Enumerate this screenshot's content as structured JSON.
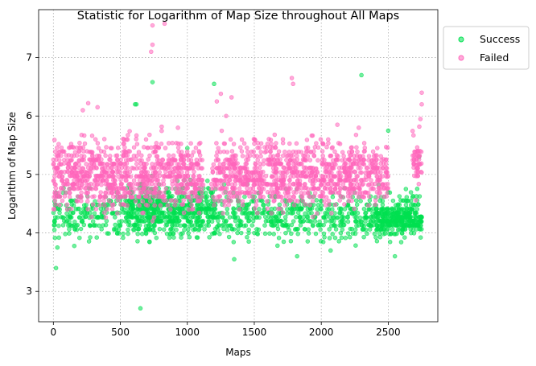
{
  "chart_data": {
    "type": "scatter",
    "title": "Statistic for Logarithm of Map Size throughout All Maps",
    "xlabel": "Maps",
    "ylabel": "Logarithm of Map Size",
    "xlim": [
      -110,
      2870
    ],
    "ylim": [
      2.48,
      7.82
    ],
    "xticks": [
      0,
      500,
      1000,
      1500,
      2000,
      2500
    ],
    "yticks": [
      3,
      4,
      5,
      6,
      7
    ],
    "grid": true,
    "legend_position": "upper right, outside plot area",
    "series": [
      {
        "name": "Success",
        "color": "#00e050",
        "clusters": [
          {
            "x": [
              0,
              2750
            ],
            "y": [
              3.7,
              4.9
            ],
            "count": 1100
          },
          {
            "x": [
              550,
              1200
            ],
            "y": [
              3.9,
              5.0
            ],
            "count": 350
          },
          {
            "x": [
              2400,
              2750
            ],
            "y": [
              3.9,
              4.5
            ],
            "count": 200
          }
        ],
        "points": [
          {
            "x": 20,
            "y": 3.4
          },
          {
            "x": 30,
            "y": 3.75
          },
          {
            "x": 650,
            "y": 2.71
          },
          {
            "x": 740,
            "y": 6.58
          },
          {
            "x": 1200,
            "y": 6.55
          },
          {
            "x": 2300,
            "y": 6.7
          },
          {
            "x": 1350,
            "y": 3.55
          },
          {
            "x": 1820,
            "y": 3.6
          },
          {
            "x": 2070,
            "y": 3.7
          },
          {
            "x": 2550,
            "y": 3.6
          },
          {
            "x": 610,
            "y": 6.2
          },
          {
            "x": 620,
            "y": 6.2
          },
          {
            "x": 1000,
            "y": 5.45
          },
          {
            "x": 2500,
            "y": 5.75
          },
          {
            "x": 2730,
            "y": 5.3
          },
          {
            "x": 1220,
            "y": 4.1
          },
          {
            "x": 1500,
            "y": 4.0
          },
          {
            "x": 1750,
            "y": 4.1
          }
        ]
      },
      {
        "name": "Failed",
        "color": "#ff66bb",
        "clusters": [
          {
            "x": [
              0,
              1120
            ],
            "y": [
              4.1,
              5.9
            ],
            "count": 900
          },
          {
            "x": [
              1180,
              2500
            ],
            "y": [
              4.2,
              5.8
            ],
            "count": 1000
          },
          {
            "x": [
              2680,
              2750
            ],
            "y": [
              4.5,
              5.9
            ],
            "count": 50
          }
        ],
        "points": [
          {
            "x": 740,
            "y": 7.55
          },
          {
            "x": 830,
            "y": 7.58
          },
          {
            "x": 740,
            "y": 7.22
          },
          {
            "x": 730,
            "y": 7.1
          },
          {
            "x": 1780,
            "y": 6.65
          },
          {
            "x": 1790,
            "y": 6.55
          },
          {
            "x": 1250,
            "y": 6.38
          },
          {
            "x": 1330,
            "y": 6.32
          },
          {
            "x": 2750,
            "y": 6.4
          },
          {
            "x": 2750,
            "y": 6.2
          },
          {
            "x": 260,
            "y": 6.22
          },
          {
            "x": 330,
            "y": 6.15
          },
          {
            "x": 220,
            "y": 6.1
          },
          {
            "x": 1290,
            "y": 6.0
          },
          {
            "x": 1220,
            "y": 6.25
          },
          {
            "x": 2120,
            "y": 5.85
          },
          {
            "x": 2280,
            "y": 5.8
          },
          {
            "x": 2740,
            "y": 5.95
          }
        ]
      }
    ]
  }
}
